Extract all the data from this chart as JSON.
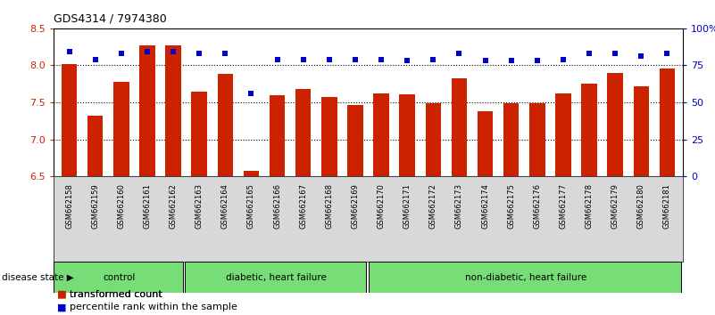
{
  "title": "GDS4314 / 7974380",
  "samples": [
    "GSM662158",
    "GSM662159",
    "GSM662160",
    "GSM662161",
    "GSM662162",
    "GSM662163",
    "GSM662164",
    "GSM662165",
    "GSM662166",
    "GSM662167",
    "GSM662168",
    "GSM662169",
    "GSM662170",
    "GSM662171",
    "GSM662172",
    "GSM662173",
    "GSM662174",
    "GSM662175",
    "GSM662176",
    "GSM662177",
    "GSM662178",
    "GSM662179",
    "GSM662180",
    "GSM662181"
  ],
  "bar_values": [
    8.02,
    7.32,
    7.78,
    8.27,
    8.27,
    7.65,
    7.88,
    6.58,
    7.6,
    7.68,
    7.57,
    7.47,
    7.62,
    7.61,
    7.49,
    7.82,
    7.38,
    7.49,
    7.49,
    7.62,
    7.75,
    7.9,
    7.72,
    7.96
  ],
  "percentile_values": [
    84,
    79,
    83,
    84,
    84,
    83,
    83,
    56,
    79,
    79,
    79,
    79,
    79,
    78,
    79,
    83,
    78,
    78,
    78,
    79,
    83,
    83,
    81,
    83
  ],
  "groups": [
    {
      "label": "control",
      "start": 0,
      "end": 5
    },
    {
      "label": "diabetic, heart failure",
      "start": 5,
      "end": 12
    },
    {
      "label": "non-diabetic, heart failure",
      "start": 12,
      "end": 24
    }
  ],
  "ylim_left": [
    6.5,
    8.5
  ],
  "ylim_right": [
    0,
    100
  ],
  "yticks_left": [
    6.5,
    7.0,
    7.5,
    8.0,
    8.5
  ],
  "yticks_right": [
    0,
    25,
    50,
    75,
    100
  ],
  "bar_color": "#CC2200",
  "dot_color": "#0000CC",
  "green_color": "#77DD77",
  "plot_bg": "#FFFFFF",
  "tick_bg": "#D8D8D8",
  "label_transformed": "transformed count",
  "label_percentile": "percentile rank within the sample",
  "disease_state_label": "disease state"
}
